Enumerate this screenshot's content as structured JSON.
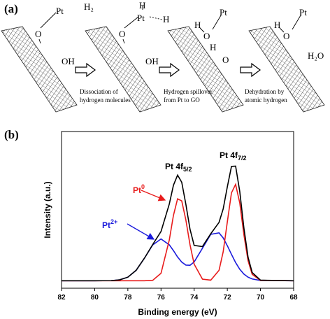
{
  "panel_a": {
    "label": "(a)",
    "stages": [
      {
        "labels": [
          "Pt",
          "H₂",
          "O",
          "OH"
        ]
      },
      {
        "labels": [
          "H",
          "Pt",
          "H",
          "O",
          "OH"
        ]
      },
      {
        "labels": [
          "H",
          "Pt",
          "O",
          "H",
          "O"
        ]
      },
      {
        "labels": [
          "H",
          "Pt",
          "O",
          "H₂O"
        ]
      }
    ],
    "captions": [
      [
        "Dissociation of",
        "hydrogen molecules"
      ],
      [
        "Hydrogen spillover",
        "from Pt to GO"
      ],
      [
        "Dehydration by",
        "atomic hydrogen"
      ]
    ]
  },
  "chart_data": {
    "type": "line",
    "label": "(b)",
    "x_label": "Binding energy (eV)",
    "y_label": "Intensity (a.u.)",
    "xlim": [
      82,
      68
    ],
    "xticks": [
      82,
      80,
      78,
      76,
      74,
      72,
      70,
      68
    ],
    "ylim": [
      -5,
      100
    ],
    "x": [
      82,
      80,
      79,
      78.5,
      78,
      77.5,
      77,
      76.5,
      76,
      75.5,
      75.25,
      75,
      74.75,
      74.5,
      74.25,
      74,
      73.5,
      73,
      72.5,
      72.25,
      72,
      71.75,
      71.5,
      71.25,
      71,
      70.75,
      70.5,
      70,
      68
    ],
    "series": [
      {
        "color": "#1a1adc",
        "values": [
          0,
          0,
          0.1,
          0.6,
          2.4,
          7.0,
          15.1,
          24.0,
          28.0,
          24.1,
          20.2,
          15.9,
          12.5,
          10.5,
          10.4,
          12.6,
          21.8,
          31.1,
          32.1,
          28.7,
          23.5,
          17.7,
          12.2,
          7.7,
          4.5,
          2.4,
          1.2,
          0.2,
          0
        ]
      },
      {
        "color": "#e81c1c",
        "values": [
          0,
          0,
          0,
          0,
          0,
          0,
          0,
          0.3,
          5.0,
          27.3,
          43.8,
          54.9,
          53.5,
          40.7,
          24.1,
          11.1,
          1.1,
          0.4,
          7.0,
          19.4,
          39.4,
          58.9,
          64.6,
          52.1,
          30.8,
          13.4,
          4.3,
          0.2,
          0
        ]
      },
      {
        "color": "#000000",
        "values": [
          0,
          0,
          0.1,
          0.6,
          2.4,
          7.0,
          15.1,
          24.3,
          33.0,
          51.4,
          64.0,
          70.8,
          66.0,
          51.2,
          34.5,
          23.7,
          22.9,
          31.5,
          39.1,
          48.1,
          62.9,
          76.6,
          76.8,
          59.8,
          35.3,
          15.8,
          5.5,
          0.4,
          0
        ]
      }
    ],
    "annotations": [
      {
        "main": "Pt 4f",
        "sub": "5/2",
        "color": "#000000"
      },
      {
        "main": "Pt 4f",
        "sub": "7/2",
        "color": "#000000"
      },
      {
        "main": "Pt",
        "sup": "0",
        "color": "#e81c1c"
      },
      {
        "main": "Pt",
        "sup": "2+",
        "color": "#1a1adc"
      }
    ]
  }
}
